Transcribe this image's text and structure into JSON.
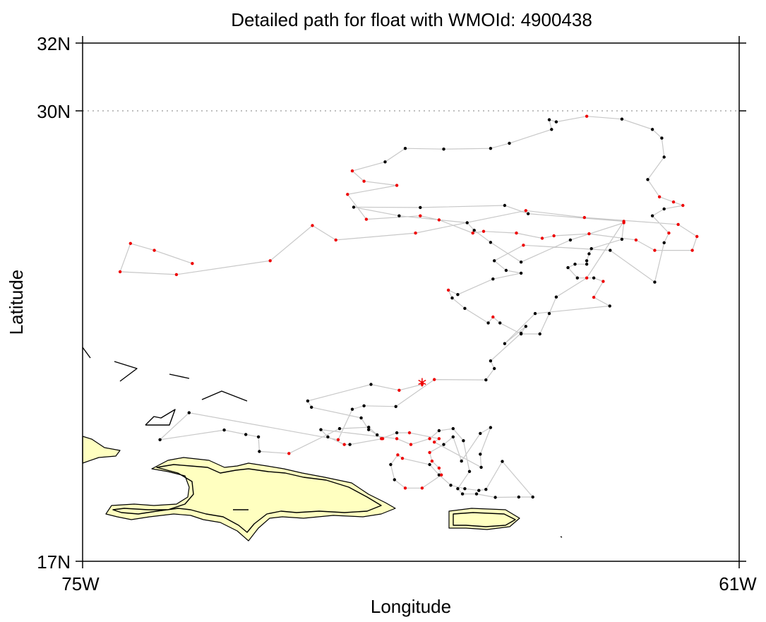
{
  "title": "Detailed path for float with WMOId: 4900438",
  "axes": {
    "xlabel": "Longitude",
    "ylabel": "Latitude",
    "x_ticks": [
      "75W",
      "61W"
    ],
    "y_ticks": [
      "32N",
      "30N",
      "17N"
    ]
  },
  "colors": {
    "path_line": "#c8c8c8",
    "point_black": "#000000",
    "point_red": "#ee0000",
    "land_fill": "#ffffc0",
    "grid": "#999999"
  },
  "chart_data": {
    "type": "scatter",
    "title": "Detailed path for float with WMOId: 4900438",
    "xlabel": "Longitude",
    "ylabel": "Latitude",
    "xlim": [
      -75,
      -61
    ],
    "ylim": [
      17,
      32
    ],
    "grid": "dotted line at 30N",
    "start_marker": {
      "lon": -67.76,
      "lat": 22.18,
      "symbol": "asterisk"
    },
    "path": [
      [
        -67.76,
        22.12,
        "r"
      ],
      [
        -68.25,
        21.95,
        "r"
      ],
      [
        -68.85,
        22.12,
        "k"
      ],
      [
        -70.2,
        21.64,
        "k"
      ],
      [
        -70.12,
        21.46,
        "k"
      ],
      [
        -69.06,
        21.15,
        "k"
      ],
      [
        -68.9,
        20.81,
        "k"
      ],
      [
        -68.72,
        20.66,
        "k"
      ],
      [
        -68.6,
        20.55,
        "r"
      ],
      [
        -69.3,
        20.38,
        "k"
      ],
      [
        -69.42,
        20.38,
        "r"
      ],
      [
        -69.77,
        20.6,
        "k"
      ],
      [
        -69.92,
        20.81,
        "k"
      ],
      [
        -68.3,
        20.55,
        "r"
      ],
      [
        -68.0,
        20.38,
        "r"
      ],
      [
        -67.6,
        20.55,
        "r"
      ],
      [
        -67.4,
        20.78,
        "k"
      ],
      [
        -67.1,
        20.84,
        "k"
      ],
      [
        -66.88,
        20.49,
        "k"
      ],
      [
        -66.75,
        19.6,
        "k"
      ],
      [
        -67.0,
        19.1,
        "k"
      ],
      [
        -66.9,
        18.95,
        "k"
      ],
      [
        -66.6,
        18.95,
        "k"
      ],
      [
        -66.2,
        18.85,
        "k"
      ],
      [
        -65.7,
        18.86,
        "k"
      ],
      [
        -65.4,
        18.86,
        "k"
      ],
      [
        -66.05,
        19.89,
        "k"
      ],
      [
        -66.4,
        19.08,
        "k"
      ],
      [
        -66.55,
        19.05,
        "k"
      ],
      [
        -66.85,
        19.1,
        "k"
      ],
      [
        -67.15,
        19.2,
        "k"
      ],
      [
        -67.4,
        19.5,
        "k"
      ],
      [
        -67.6,
        19.8,
        "k"
      ],
      [
        -68.18,
        19.98,
        "r"
      ],
      [
        -68.28,
        20.08,
        "r"
      ],
      [
        -68.43,
        19.8,
        "k"
      ],
      [
        -68.35,
        19.36,
        "k"
      ],
      [
        -68.12,
        19.12,
        "r"
      ],
      [
        -67.76,
        19.12,
        "r"
      ],
      [
        -67.35,
        19.5,
        "r"
      ],
      [
        -67.4,
        19.7,
        "r"
      ],
      [
        -67.55,
        19.9,
        "r"
      ],
      [
        -67.6,
        20.15,
        "r"
      ],
      [
        -67.3,
        20.38,
        "k"
      ],
      [
        -67.1,
        20.6,
        "k"
      ],
      [
        -66.92,
        19.9,
        "k"
      ],
      [
        -66.52,
        20.7,
        "k"
      ],
      [
        -66.3,
        20.87,
        "k"
      ],
      [
        -66.52,
        20.1,
        "k"
      ],
      [
        -66.5,
        19.72,
        "k"
      ],
      [
        -67.5,
        20.45,
        "r"
      ],
      [
        -67.4,
        20.55,
        "r"
      ],
      [
        -68.03,
        20.72,
        "r"
      ],
      [
        -68.3,
        20.72,
        "k"
      ],
      [
        -68.63,
        20.55,
        "r"
      ],
      [
        -68.9,
        20.88,
        "k"
      ],
      [
        -69.52,
        20.84,
        "k"
      ],
      [
        -70.6,
        20.12,
        "r"
      ],
      [
        -71.23,
        20.18,
        "k"
      ],
      [
        -71.25,
        20.6,
        "k"
      ],
      [
        -71.52,
        20.67,
        "k"
      ],
      [
        -71.98,
        20.8,
        "k"
      ],
      [
        -73.35,
        20.52,
        "k"
      ],
      [
        -72.73,
        21.3,
        "k"
      ],
      [
        -69.55,
        20.52,
        "r"
      ],
      [
        -69.25,
        21.4,
        "k"
      ],
      [
        -69.0,
        21.5,
        "k"
      ],
      [
        -68.32,
        21.48,
        "k"
      ],
      [
        -67.5,
        22.26,
        "r"
      ],
      [
        -66.4,
        22.25,
        "k"
      ],
      [
        -66.22,
        22.58,
        "k"
      ],
      [
        -66.3,
        22.8,
        "k"
      ],
      [
        -65.65,
        23.6,
        "k"
      ],
      [
        -65.55,
        23.8,
        "k"
      ],
      [
        -66.0,
        23.3,
        "k"
      ],
      [
        -65.35,
        24.17,
        "k"
      ],
      [
        -63.76,
        24.39,
        "k"
      ],
      [
        -64.1,
        24.64,
        "r"
      ],
      [
        -63.9,
        25.1,
        "r"
      ],
      [
        -64.1,
        25.2,
        "k"
      ],
      [
        -64.45,
        25.2,
        "k"
      ],
      [
        -64.65,
        25.5,
        "k"
      ],
      [
        -64.5,
        25.6,
        "k"
      ],
      [
        -64.25,
        25.6,
        "k"
      ],
      [
        -64.25,
        25.7,
        "k"
      ],
      [
        -64.2,
        25.9,
        "k"
      ],
      [
        -64.15,
        26.05,
        "k"
      ],
      [
        -63.5,
        26.32,
        "k"
      ],
      [
        -63.46,
        26.8,
        "r"
      ],
      [
        -64.6,
        26.3,
        "k"
      ],
      [
        -65.65,
        25.66,
        "k"
      ],
      [
        -66.3,
        26.23,
        "k"
      ],
      [
        -66.65,
        26.58,
        "k"
      ],
      [
        -66.8,
        26.8,
        "k"
      ],
      [
        -68.25,
        27.0,
        "k"
      ],
      [
        -69.22,
        27.25,
        "k"
      ],
      [
        -67.8,
        27.24,
        "k"
      ],
      [
        -66.0,
        27.3,
        "k"
      ],
      [
        -65.5,
        27.06,
        "k"
      ],
      [
        -63.46,
        26.84,
        "r"
      ],
      [
        -64.25,
        25.2,
        "r"
      ],
      [
        -64.9,
        24.65,
        "k"
      ],
      [
        -65.05,
        24.17,
        "k"
      ],
      [
        -65.25,
        23.58,
        "k"
      ],
      [
        -65.65,
        23.58,
        "k"
      ],
      [
        -66.1,
        23.9,
        "k"
      ],
      [
        -66.25,
        24.07,
        "r"
      ],
      [
        -66.35,
        23.9,
        "k"
      ],
      [
        -66.85,
        24.32,
        "k"
      ],
      [
        -67.12,
        24.62,
        "k"
      ],
      [
        -67.2,
        24.85,
        "r"
      ],
      [
        -67.0,
        24.72,
        "k"
      ],
      [
        -66.25,
        25.17,
        "k"
      ],
      [
        -65.65,
        25.34,
        "k"
      ],
      [
        -65.97,
        25.42,
        "k"
      ],
      [
        -66.22,
        25.7,
        "k"
      ],
      [
        -65.6,
        26.15,
        "r"
      ],
      [
        -63.75,
        26.0,
        "k"
      ],
      [
        -62.8,
        25.08,
        "k"
      ],
      [
        -62.6,
        26.22,
        "k"
      ],
      [
        -62.5,
        26.5,
        "r"
      ],
      [
        -62.85,
        27.0,
        "k"
      ],
      [
        -62.6,
        27.2,
        "k"
      ],
      [
        -62.2,
        27.3,
        "r"
      ],
      [
        -62.4,
        27.4,
        "r"
      ],
      [
        -62.7,
        27.55,
        "r"
      ],
      [
        -62.95,
        28.05,
        "k"
      ],
      [
        -62.6,
        28.7,
        "k"
      ],
      [
        -62.65,
        29.25,
        "k"
      ],
      [
        -62.85,
        29.5,
        "k"
      ],
      [
        -63.5,
        29.8,
        "k"
      ],
      [
        -64.25,
        29.88,
        "r"
      ],
      [
        -64.9,
        29.72,
        "k"
      ],
      [
        -65.05,
        29.78,
        "k"
      ],
      [
        -65.0,
        29.5,
        "k"
      ],
      [
        -65.9,
        29.1,
        "k"
      ],
      [
        -66.3,
        28.95,
        "k"
      ],
      [
        -67.3,
        28.93,
        "k"
      ],
      [
        -68.12,
        28.95,
        "k"
      ],
      [
        -68.55,
        28.56,
        "k"
      ],
      [
        -69.25,
        28.3,
        "r"
      ],
      [
        -69.0,
        28.0,
        "r"
      ],
      [
        -68.3,
        27.88,
        "r"
      ],
      [
        -69.35,
        27.62,
        "r"
      ],
      [
        -68.95,
        26.9,
        "r"
      ],
      [
        -67.8,
        27.0,
        "r"
      ],
      [
        -67.4,
        26.88,
        "r"
      ],
      [
        -66.68,
        26.5,
        "r"
      ],
      [
        -66.45,
        26.55,
        "r"
      ],
      [
        -65.75,
        26.5,
        "r"
      ],
      [
        -65.2,
        26.35,
        "r"
      ],
      [
        -64.95,
        26.42,
        "r"
      ],
      [
        -64.2,
        26.48,
        "r"
      ],
      [
        -63.2,
        26.3,
        "r"
      ],
      [
        -62.8,
        26.0,
        "r"
      ],
      [
        -62.0,
        26.0,
        "r"
      ],
      [
        -61.9,
        26.4,
        "r"
      ],
      [
        -62.3,
        26.75,
        "r"
      ],
      [
        -64.3,
        26.95,
        "r"
      ],
      [
        -65.55,
        27.15,
        "r"
      ],
      [
        -67.9,
        26.5,
        "r"
      ],
      [
        -69.6,
        26.3,
        "r"
      ],
      [
        -70.1,
        26.72,
        "r"
      ],
      [
        -71.0,
        25.7,
        "r"
      ],
      [
        -73.0,
        25.3,
        "r"
      ],
      [
        -74.2,
        25.38,
        "r"
      ],
      [
        -73.98,
        26.2,
        "r"
      ],
      [
        -73.47,
        26.0,
        "r"
      ],
      [
        -72.66,
        25.62,
        "r"
      ]
    ]
  }
}
